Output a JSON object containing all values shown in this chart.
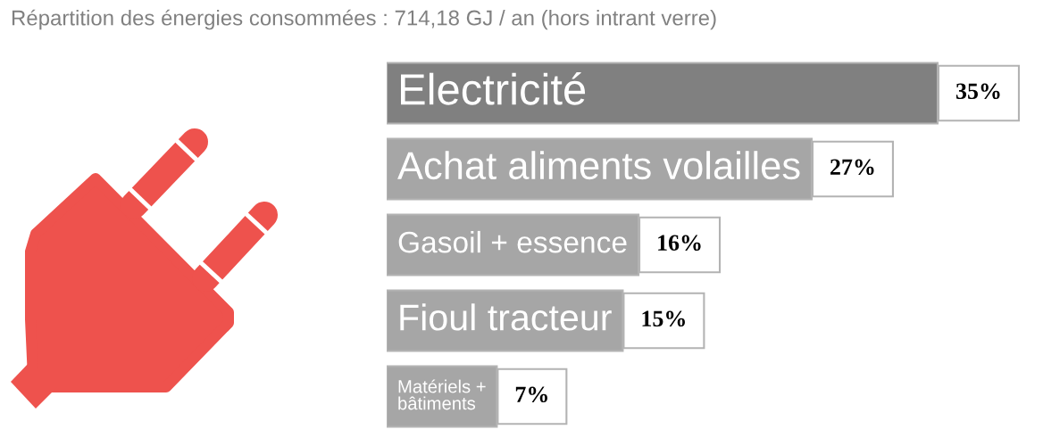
{
  "chart_data": {
    "type": "bar",
    "orientation": "horizontal",
    "title": "Répartition des énergies consommées : 714,18 GJ / an (hors intrant verre)",
    "categories": [
      "Electricité",
      "Achat aliments volailles",
      "Gasoil + essence",
      "Fioul tracteur",
      "Matériels + bâtiments"
    ],
    "values": [
      35,
      27,
      16,
      15,
      7
    ],
    "colors": [
      "#808080",
      "#a6a6a6",
      "#a6a6a6",
      "#a6a6a6",
      "#a6a6a6"
    ],
    "value_labels": [
      "35%",
      "27%",
      "16%",
      "15%",
      "7%"
    ],
    "tick_labels": false
  }
}
